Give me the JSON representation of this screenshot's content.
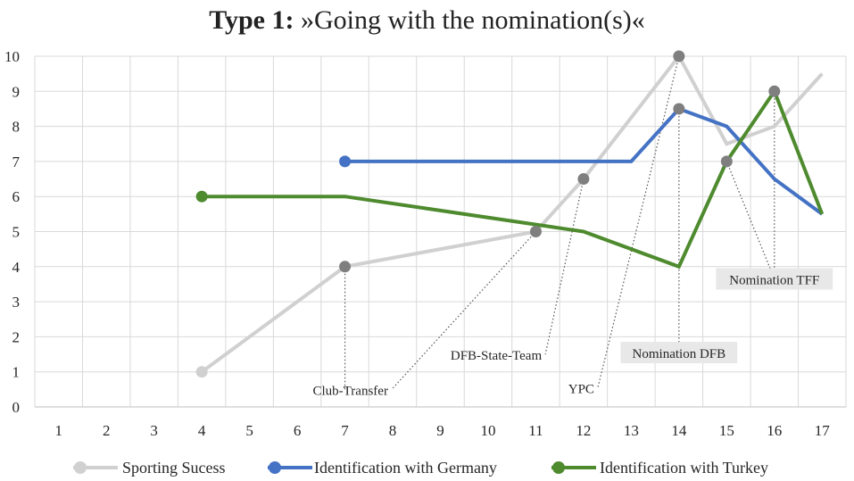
{
  "chart_data": {
    "type": "line",
    "title_bold": "Type 1:",
    "title_rest": "»Going with the nomination(s)«",
    "xlabel": "",
    "ylabel": "",
    "x_ticks": [
      1,
      2,
      3,
      4,
      5,
      6,
      7,
      8,
      9,
      10,
      11,
      12,
      13,
      14,
      15,
      16,
      17
    ],
    "y_ticks": [
      0,
      1,
      2,
      3,
      4,
      5,
      6,
      7,
      8,
      9,
      10
    ],
    "xlim": [
      0.5,
      17.5
    ],
    "ylim": [
      0,
      10
    ],
    "grid": true,
    "legend_position": "bottom",
    "series": [
      {
        "name": "Sporting Sucess",
        "color": "#d0d0d0",
        "x": [
          4,
          7,
          11,
          12,
          14,
          15,
          16,
          17
        ],
        "y": [
          1,
          4,
          5,
          6.5,
          10,
          7.5,
          8,
          9.5
        ]
      },
      {
        "name": "Identification with Germany",
        "color": "#4472c4",
        "x": [
          7,
          13,
          14,
          15,
          16,
          17
        ],
        "y": [
          7,
          7,
          8.5,
          8,
          6.5,
          5.5
        ]
      },
      {
        "name": "Identification with Turkey",
        "color": "#4e8a2e",
        "x": [
          4,
          7,
          11,
          12,
          14,
          15,
          16,
          17
        ],
        "y": [
          6,
          6,
          5.2,
          5,
          4,
          7,
          9,
          5.5
        ]
      }
    ],
    "start_markers": [
      {
        "x": 4,
        "y": 1,
        "color": "#d0d0d0"
      },
      {
        "x": 7,
        "y": 7,
        "color": "#4472c4"
      },
      {
        "x": 4,
        "y": 6,
        "color": "#4e8a2e"
      }
    ],
    "event_points": [
      {
        "x": 7,
        "y": 4
      },
      {
        "x": 11,
        "y": 5
      },
      {
        "x": 12,
        "y": 6.5
      },
      {
        "x": 14,
        "y": 10
      },
      {
        "x": 14,
        "y": 8.5
      },
      {
        "x": 15,
        "y": 7
      },
      {
        "x": 16,
        "y": 9
      }
    ],
    "marker_color": "#7f7f7f",
    "annotations": [
      {
        "text": "Club-Transfer",
        "boxed": false,
        "anchor_x": 11,
        "anchor_y": 5,
        "label_x": 7.98,
        "label_y": 0.45
      },
      {
        "text": "DFB-State-Team",
        "boxed": false,
        "anchor_x": 12,
        "anchor_y": 6.5,
        "label_x": 11.2,
        "label_y": 1.45
      },
      {
        "text": "YPC",
        "boxed": false,
        "anchor_x": 14,
        "anchor_y": 10,
        "label_x": 12.3,
        "label_y": 0.5
      },
      {
        "text": "Nomination DFB",
        "boxed": true,
        "anchor_x": 14,
        "anchor_y": 8.5,
        "label_x": 14,
        "label_y": 1.5
      },
      {
        "text": "Nomination TFF",
        "boxed": true,
        "anchor_x": 16,
        "anchor_y": 9,
        "label_x": 16,
        "label_y": 3.6
      },
      {
        "text": "",
        "boxed": false,
        "anchor_x": 15,
        "anchor_y": 7,
        "label_x": 16,
        "label_y": 3.6
      },
      {
        "text": "",
        "boxed": false,
        "anchor_x": 7,
        "anchor_y": 4,
        "label_x": 7,
        "label_y": 0.45
      }
    ]
  }
}
